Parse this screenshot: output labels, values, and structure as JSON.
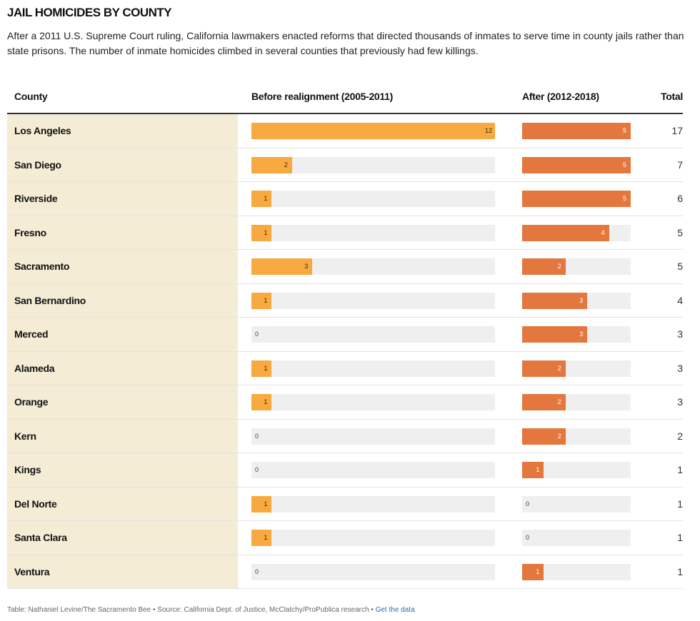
{
  "title": "JAIL HOMICIDES BY COUNTY",
  "subtitle": "After a 2011 U.S. Supreme Court ruling, California lawmakers enacted reforms that directed thousands of inmates to serve time in county jails rather than state prisons. The number of inmate homicides climbed in several counties that previously had few killings.",
  "headers": {
    "county": "County",
    "before": "Before realignment (2005-2011)",
    "after": "After (2012-2018)",
    "total": "Total"
  },
  "footer": {
    "text": "Table: Nathaniel Levine/The Sacramento Bee • Source: California Dept. of Justice, McClatchy/ProPublica research • ",
    "link": "Get the data"
  },
  "colors": {
    "before_bar": "#f8a93f",
    "after_bar": "#e4773e",
    "track": "#efefef",
    "county_column": "#f5ecd5"
  },
  "chart_data": {
    "type": "table",
    "columns": [
      "County",
      "Before realignment (2005-2011)",
      "After (2012-2018)",
      "Total"
    ],
    "before_max": 12,
    "after_max": 5,
    "rows": [
      {
        "county": "Los Angeles",
        "before": 12,
        "after": 5,
        "total": 17
      },
      {
        "county": "San Diego",
        "before": 2,
        "after": 5,
        "total": 7
      },
      {
        "county": "Riverside",
        "before": 1,
        "after": 5,
        "total": 6
      },
      {
        "county": "Fresno",
        "before": 1,
        "after": 4,
        "total": 5
      },
      {
        "county": "Sacramento",
        "before": 3,
        "after": 2,
        "total": 5
      },
      {
        "county": "San Bernardino",
        "before": 1,
        "after": 3,
        "total": 4
      },
      {
        "county": "Merced",
        "before": 0,
        "after": 3,
        "total": 3
      },
      {
        "county": "Alameda",
        "before": 1,
        "after": 2,
        "total": 3
      },
      {
        "county": "Orange",
        "before": 1,
        "after": 2,
        "total": 3
      },
      {
        "county": "Kern",
        "before": 0,
        "after": 2,
        "total": 2
      },
      {
        "county": "Kings",
        "before": 0,
        "after": 1,
        "total": 1
      },
      {
        "county": "Del Norte",
        "before": 1,
        "after": 0,
        "total": 1
      },
      {
        "county": "Santa Clara",
        "before": 1,
        "after": 0,
        "total": 1
      },
      {
        "county": "Ventura",
        "before": 0,
        "after": 1,
        "total": 1
      }
    ]
  }
}
